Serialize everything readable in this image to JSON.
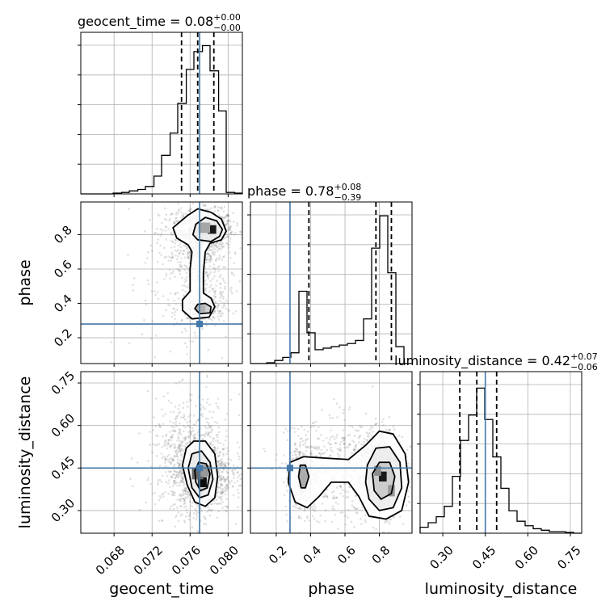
{
  "colors": {
    "truth": "#4477aa",
    "grid": "#b0b0b0",
    "hist": "#000000",
    "points": "#777777"
  },
  "chart_data": {
    "type": "corner",
    "grid": true,
    "parameters": [
      {
        "name": "geocent_time",
        "title": "geocent_time = 0.08",
        "title_sup": "+0.00",
        "title_sub": "−0.00",
        "xlim": [
          0.0645,
          0.0815
        ],
        "ticks": [
          0.068,
          0.072,
          0.076,
          0.08
        ],
        "tick_labels": [
          "0.068",
          "0.072",
          "0.076",
          "0.080"
        ],
        "truth": 0.077,
        "quantiles": [
          0.0751,
          0.0768,
          0.0785
        ],
        "hist": {
          "bin_edges": [
            0.0645,
            0.0654,
            0.0662,
            0.0671,
            0.0679,
            0.0688,
            0.0696,
            0.0705,
            0.0713,
            0.0722,
            0.073,
            0.0739,
            0.0747,
            0.0756,
            0.0764,
            0.0773,
            0.0781,
            0.079,
            0.0798,
            0.0807,
            0.0815
          ],
          "counts": [
            0.0,
            0.0,
            0.0,
            0.0,
            0.005,
            0.01,
            0.02,
            0.03,
            0.05,
            0.12,
            0.26,
            0.41,
            0.61,
            0.84,
            0.96,
            1.0,
            0.83,
            0.56,
            0.01,
            0.005
          ],
          "ymax": 1.09
        }
      },
      {
        "name": "phase",
        "title": "phase = 0.78",
        "title_sup": "+0.08",
        "title_sub": "−0.39",
        "xlim": [
          0.05,
          0.99
        ],
        "ticks": [
          0.2,
          0.4,
          0.6,
          0.8
        ],
        "tick_labels": [
          "0.2",
          "0.4",
          "0.6",
          "0.8"
        ],
        "truth": 0.28,
        "quantiles": [
          0.39,
          0.78,
          0.87
        ],
        "hist": {
          "bin_edges": [
            0.05,
            0.097,
            0.144,
            0.191,
            0.238,
            0.285,
            0.332,
            0.379,
            0.426,
            0.473,
            0.52,
            0.567,
            0.614,
            0.661,
            0.708,
            0.755,
            0.802,
            0.849,
            0.896,
            0.943,
            0.99
          ],
          "counts": [
            0.0,
            0.0,
            0.005,
            0.02,
            0.04,
            0.07,
            0.47,
            0.2,
            0.09,
            0.1,
            0.11,
            0.12,
            0.13,
            0.15,
            0.29,
            0.75,
            0.96,
            0.59,
            0.11,
            0.0
          ],
          "ymax": 1.05
        }
      },
      {
        "name": "luminosity_distance",
        "title": "luminosity_distance = 0.42",
        "title_sup": "+0.07",
        "title_sub": "−0.06",
        "xlim": [
          0.22,
          0.79
        ],
        "ticks": [
          0.3,
          0.45,
          0.6,
          0.75
        ],
        "tick_labels": [
          "0.30",
          "0.45",
          "0.60",
          "0.75"
        ],
        "truth": 0.45,
        "quantiles": [
          0.36,
          0.42,
          0.49
        ],
        "hist": {
          "bin_edges": [
            0.22,
            0.2485,
            0.277,
            0.3055,
            0.334,
            0.3625,
            0.391,
            0.4195,
            0.448,
            0.4765,
            0.505,
            0.5335,
            0.562,
            0.5905,
            0.619,
            0.6475,
            0.676,
            0.7045,
            0.733,
            0.7615,
            0.79
          ],
          "counts": [
            0.04,
            0.07,
            0.11,
            0.18,
            0.38,
            0.62,
            0.79,
            0.97,
            0.76,
            0.51,
            0.3,
            0.15,
            0.08,
            0.05,
            0.03,
            0.02,
            0.01,
            0.01,
            0.005,
            0.0
          ],
          "ymax": 1.08
        }
      }
    ],
    "pairs": [
      {
        "x_param": "geocent_time",
        "y_param": "phase",
        "ylim": [
          0.05,
          0.99
        ],
        "point_clusters": [
          {
            "cx": 0.0783,
            "cy": 0.83,
            "sx": 0.0011,
            "sy": 0.055,
            "n": 520
          },
          {
            "cx": 0.0762,
            "cy": 0.8,
            "sx": 0.0017,
            "sy": 0.08,
            "n": 380
          },
          {
            "cx": 0.0771,
            "cy": 0.62,
            "sx": 0.0012,
            "sy": 0.13,
            "n": 300
          },
          {
            "cx": 0.0773,
            "cy": 0.37,
            "sx": 0.0012,
            "sy": 0.04,
            "n": 260
          },
          {
            "cx": 0.076,
            "cy": 0.55,
            "sx": 0.0025,
            "sy": 0.25,
            "n": 240
          }
        ],
        "contours": [
          [
            [
              0.0746,
              0.78
            ],
            [
              0.0758,
              0.74
            ],
            [
              0.0762,
              0.7
            ],
            [
              0.076,
              0.6
            ],
            [
              0.076,
              0.47
            ],
            [
              0.0752,
              0.42
            ],
            [
              0.0752,
              0.36
            ],
            [
              0.0762,
              0.31
            ],
            [
              0.078,
              0.32
            ],
            [
              0.0786,
              0.38
            ],
            [
              0.0782,
              0.43
            ],
            [
              0.0774,
              0.46
            ],
            [
              0.0774,
              0.58
            ],
            [
              0.0776,
              0.7
            ],
            [
              0.0781,
              0.75
            ],
            [
              0.0793,
              0.77
            ],
            [
              0.0798,
              0.82
            ],
            [
              0.0793,
              0.89
            ],
            [
              0.0782,
              0.93
            ],
            [
              0.0768,
              0.95
            ],
            [
              0.0757,
              0.91
            ],
            [
              0.0742,
              0.84
            ]
          ],
          [
            [
              0.0763,
              0.8
            ],
            [
              0.0768,
              0.77
            ],
            [
              0.0782,
              0.76
            ],
            [
              0.0791,
              0.79
            ],
            [
              0.0794,
              0.83
            ],
            [
              0.0788,
              0.88
            ],
            [
              0.0776,
              0.9
            ],
            [
              0.0766,
              0.86
            ]
          ],
          [
            [
              0.0765,
              0.37
            ],
            [
              0.077,
              0.34
            ],
            [
              0.0781,
              0.345
            ],
            [
              0.0782,
              0.38
            ],
            [
              0.0776,
              0.4
            ],
            [
              0.0768,
              0.395
            ]
          ]
        ],
        "density_blocks": [
          {
            "x": 0.0783,
            "y": 0.83,
            "w": 0.0009,
            "h": 0.05,
            "shade": 0.9
          },
          {
            "x": 0.0775,
            "y": 0.84,
            "w": 0.0012,
            "h": 0.06,
            "shade": 0.35
          },
          {
            "x": 0.0771,
            "y": 0.37,
            "w": 0.001,
            "h": 0.04,
            "shade": 0.3
          }
        ],
        "truth_point": [
          0.077,
          0.28
        ]
      },
      {
        "x_param": "geocent_time",
        "y_param": "luminosity_distance",
        "ylim": [
          0.22,
          0.79
        ],
        "point_clusters": [
          {
            "cx": 0.0772,
            "cy": 0.43,
            "sx": 0.0016,
            "sy": 0.07,
            "n": 1000
          },
          {
            "cx": 0.076,
            "cy": 0.5,
            "sx": 0.0022,
            "sy": 0.1,
            "n": 500
          }
        ],
        "contours": [
          [
            [
              0.0752,
              0.46
            ],
            [
              0.0756,
              0.52
            ],
            [
              0.0764,
              0.545
            ],
            [
              0.0776,
              0.545
            ],
            [
              0.0786,
              0.5
            ],
            [
              0.0789,
              0.42
            ],
            [
              0.0786,
              0.345
            ],
            [
              0.0776,
              0.315
            ],
            [
              0.0765,
              0.33
            ],
            [
              0.0757,
              0.39
            ]
          ],
          [
            [
              0.0758,
              0.45
            ],
            [
              0.0762,
              0.5
            ],
            [
              0.0772,
              0.51
            ],
            [
              0.0781,
              0.47
            ],
            [
              0.0784,
              0.41
            ],
            [
              0.0779,
              0.355
            ],
            [
              0.077,
              0.345
            ],
            [
              0.0762,
              0.38
            ]
          ],
          [
            [
              0.0765,
              0.44
            ],
            [
              0.0769,
              0.47
            ],
            [
              0.0777,
              0.465
            ],
            [
              0.0781,
              0.43
            ],
            [
              0.0778,
              0.38
            ],
            [
              0.0771,
              0.37
            ],
            [
              0.0766,
              0.4
            ]
          ]
        ],
        "density_blocks": [
          {
            "x": 0.0773,
            "y": 0.4,
            "w": 0.0009,
            "h": 0.035,
            "shade": 0.95
          },
          {
            "x": 0.0768,
            "y": 0.43,
            "w": 0.0012,
            "h": 0.04,
            "shade": 0.6
          },
          {
            "x": 0.0776,
            "y": 0.44,
            "w": 0.001,
            "h": 0.04,
            "shade": 0.4
          }
        ],
        "truth_point": [
          0.077,
          0.45
        ]
      },
      {
        "x_param": "phase",
        "y_param": "luminosity_distance",
        "ylim": [
          0.22,
          0.79
        ],
        "point_clusters": [
          {
            "cx": 0.81,
            "cy": 0.43,
            "sx": 0.07,
            "sy": 0.07,
            "n": 900
          },
          {
            "cx": 0.35,
            "cy": 0.42,
            "sx": 0.04,
            "sy": 0.06,
            "n": 400
          },
          {
            "cx": 0.58,
            "cy": 0.44,
            "sx": 0.15,
            "sy": 0.09,
            "n": 500
          }
        ],
        "contours": [
          [
            [
              0.28,
              0.47
            ],
            [
              0.36,
              0.49
            ],
            [
              0.48,
              0.485
            ],
            [
              0.62,
              0.48
            ],
            [
              0.72,
              0.53
            ],
            [
              0.8,
              0.58
            ],
            [
              0.88,
              0.57
            ],
            [
              0.95,
              0.5
            ],
            [
              0.97,
              0.4
            ],
            [
              0.93,
              0.3
            ],
            [
              0.84,
              0.27
            ],
            [
              0.74,
              0.28
            ],
            [
              0.68,
              0.35
            ],
            [
              0.62,
              0.4
            ],
            [
              0.52,
              0.4
            ],
            [
              0.45,
              0.35
            ],
            [
              0.38,
              0.31
            ],
            [
              0.31,
              0.33
            ],
            [
              0.27,
              0.4
            ]
          ],
          [
            [
              0.73,
              0.46
            ],
            [
              0.78,
              0.52
            ],
            [
              0.86,
              0.525
            ],
            [
              0.92,
              0.47
            ],
            [
              0.93,
              0.38
            ],
            [
              0.88,
              0.31
            ],
            [
              0.8,
              0.3
            ],
            [
              0.74,
              0.34
            ],
            [
              0.72,
              0.4
            ]
          ],
          [
            [
              0.76,
              0.43
            ],
            [
              0.8,
              0.47
            ],
            [
              0.86,
              0.47
            ],
            [
              0.89,
              0.42
            ],
            [
              0.87,
              0.36
            ],
            [
              0.81,
              0.34
            ],
            [
              0.77,
              0.37
            ]
          ],
          [
            [
              0.33,
              0.42
            ],
            [
              0.34,
              0.46
            ],
            [
              0.37,
              0.46
            ],
            [
              0.39,
              0.42
            ],
            [
              0.37,
              0.38
            ],
            [
              0.345,
              0.38
            ]
          ]
        ],
        "density_blocks": [
          {
            "x": 0.82,
            "y": 0.42,
            "w": 0.045,
            "h": 0.035,
            "shade": 0.9
          },
          {
            "x": 0.87,
            "y": 0.37,
            "w": 0.04,
            "h": 0.04,
            "shade": 0.4
          },
          {
            "x": 0.79,
            "y": 0.44,
            "w": 0.04,
            "h": 0.035,
            "shade": 0.45
          }
        ],
        "truth_point": [
          0.28,
          0.45
        ]
      }
    ]
  }
}
